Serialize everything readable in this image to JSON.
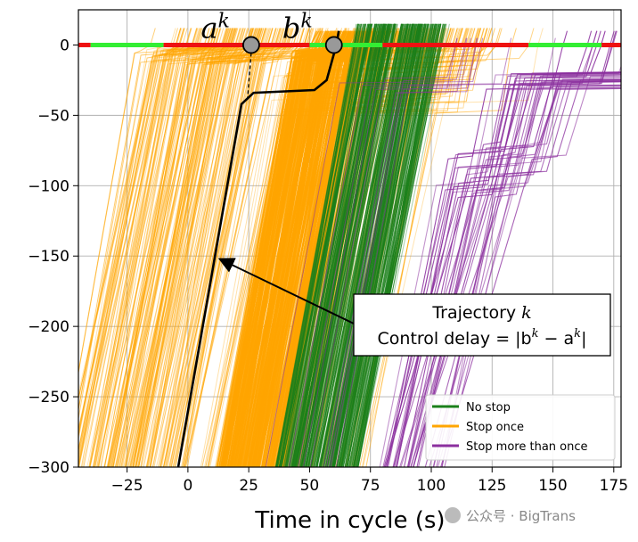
{
  "chart_data": {
    "type": "line",
    "title": "",
    "xlabel": "Time in cycle (s)",
    "ylabel": "",
    "xlim": [
      -45,
      178
    ],
    "ylim": [
      -300,
      25
    ],
    "xticks": [
      -25,
      0,
      25,
      50,
      75,
      100,
      125,
      150,
      175
    ],
    "yticks": [
      0,
      -50,
      -100,
      -150,
      -200,
      -250,
      -300
    ],
    "xtick_labels": [
      "−25",
      "0",
      "25",
      "50",
      "75",
      "100",
      "125",
      "150",
      "175"
    ],
    "ytick_labels": [
      "0",
      "−50",
      "−100",
      "−150",
      "−200",
      "−250",
      "−300"
    ],
    "grid": true,
    "signal_phases": [
      {
        "state": "red",
        "start": -45,
        "end": -40
      },
      {
        "state": "green",
        "start": -40,
        "end": -10
      },
      {
        "state": "red",
        "start": -10,
        "end": 50
      },
      {
        "state": "green",
        "start": 50,
        "end": 80
      },
      {
        "state": "red",
        "start": 80,
        "end": 140
      },
      {
        "state": "green",
        "start": 140,
        "end": 170
      },
      {
        "state": "red",
        "start": 170,
        "end": 178
      }
    ],
    "series": [
      {
        "name": "No stop",
        "color": "#1a7f1a",
        "count_approx": 260,
        "x_at_bottom_range": [
          35,
          75
        ],
        "slope_m_per_s": 9
      },
      {
        "name": "Stop once",
        "color": "#ffa500",
        "count_approx": 400,
        "x_at_bottom_range": [
          -55,
          75
        ],
        "queue_levels_m": [
          -5,
          -45
        ]
      },
      {
        "name": "Stop more than once",
        "color": "#8b2f9e",
        "count_approx": 35,
        "x_at_bottom_range": [
          78,
          105
        ],
        "queue_levels_m": [
          -20,
          -105
        ]
      }
    ],
    "highlight_trajectory": {
      "name": "Trajectory k",
      "color": "#000000",
      "points": [
        [
          -4,
          -300
        ],
        [
          22,
          -42
        ],
        [
          27,
          -34
        ],
        [
          52,
          -32
        ],
        [
          57,
          -25
        ],
        [
          61,
          0
        ],
        [
          62,
          10
        ]
      ]
    },
    "markers": [
      {
        "label": "a",
        "superscript": "k",
        "x": 26,
        "y": 0
      },
      {
        "label": "b",
        "superscript": "k",
        "x": 60,
        "y": 0
      }
    ],
    "annotation": {
      "line1": "Trajectory ",
      "line1_math": "k",
      "line2": "Control delay = |b",
      "line2_sup_b": "k",
      "line2_mid": " − a",
      "line2_sup_a": "k",
      "line2_end": "|",
      "arrow_target": [
        13,
        -152
      ]
    },
    "legend": {
      "position": "bottom-right",
      "entries": [
        {
          "label": "No stop",
          "color": "#1a7f1a"
        },
        {
          "label": "Stop once",
          "color": "#ffa500"
        },
        {
          "label": "Stop more than once",
          "color": "#8b2f9e"
        }
      ]
    }
  },
  "watermark": {
    "text": "公众号 · BigTrans"
  }
}
